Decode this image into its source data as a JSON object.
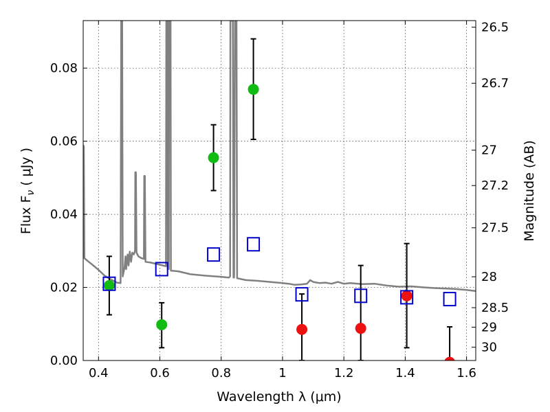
{
  "chart_data": {
    "type": "scatter",
    "title": "",
    "xlabel": "Wavelength  λ (μm)",
    "ylabel": "Flux  F",
    "ylabel_subscript": "ν",
    "ylabel_unit": "( μJy )",
    "y2label": "Magnitude (AB)",
    "xlim": [
      0.35,
      1.63
    ],
    "ylim": [
      0.0,
      0.093
    ],
    "x_ticks": [
      0.4,
      0.6,
      0.8,
      1.0,
      1.2,
      1.4,
      1.6
    ],
    "x_tick_labels": [
      "0.4",
      "0.6",
      "0.8",
      "1",
      "1.2",
      "1.4",
      "1.6"
    ],
    "y_ticks": [
      0.0,
      0.02,
      0.04,
      0.06,
      0.08
    ],
    "y_tick_labels": [
      "0.00",
      "0.02",
      "0.04",
      "0.06",
      "0.08"
    ],
    "y2_ticks": [
      26.5,
      26.7,
      27,
      27.2,
      27.5,
      28,
      28.5,
      29,
      30
    ],
    "y2_tick_labels": [
      "26.5",
      "26.7",
      "27",
      "27.2",
      "27.5",
      "28",
      "28.5",
      "29",
      "30"
    ],
    "grid": true,
    "colors": {
      "green": "#11bb11",
      "red": "#ee1111",
      "blue": "#0000cc",
      "model": "#808080",
      "errorbar": "#000000"
    },
    "series": [
      {
        "marker": "circle",
        "color": "green",
        "points": [
          {
            "x": 0.435,
            "y": 0.0205,
            "yerr_lo": 0.0125,
            "yerr_hi": 0.0285
          },
          {
            "x": 0.606,
            "y": 0.0098,
            "yerr_lo": 0.0035,
            "yerr_hi": 0.0158
          },
          {
            "x": 0.775,
            "y": 0.0555,
            "yerr_lo": 0.0465,
            "yerr_hi": 0.0645
          },
          {
            "x": 0.905,
            "y": 0.0742,
            "yerr_lo": 0.0605,
            "yerr_hi": 0.088
          }
        ]
      },
      {
        "marker": "circle",
        "color": "red",
        "points": [
          {
            "x": 1.063,
            "y": 0.0085,
            "yerr_lo": 0.0,
            "yerr_hi": 0.0182
          },
          {
            "x": 1.255,
            "y": 0.0088,
            "yerr_lo": 0.0,
            "yerr_hi": 0.026
          },
          {
            "x": 1.405,
            "y": 0.0177,
            "yerr_lo": 0.0035,
            "yerr_hi": 0.032
          },
          {
            "x": 1.545,
            "y": -0.0005,
            "yerr_lo": 0.0,
            "yerr_hi": 0.0092
          }
        ]
      },
      {
        "marker": "open-square",
        "color": "blue",
        "points": [
          {
            "x": 0.435,
            "y": 0.021
          },
          {
            "x": 0.606,
            "y": 0.025
          },
          {
            "x": 0.775,
            "y": 0.029
          },
          {
            "x": 0.905,
            "y": 0.0318
          },
          {
            "x": 1.063,
            "y": 0.0181
          },
          {
            "x": 1.255,
            "y": 0.0177
          },
          {
            "x": 1.405,
            "y": 0.0173
          },
          {
            "x": 1.545,
            "y": 0.0168
          }
        ]
      }
    ],
    "model_spectrum": {
      "color": "model",
      "points": [
        [
          0.35,
          0.059
        ],
        [
          0.352,
          0.0585
        ],
        [
          0.354,
          0.028
        ],
        [
          0.365,
          0.0272
        ],
        [
          0.38,
          0.0262
        ],
        [
          0.4,
          0.0248
        ],
        [
          0.42,
          0.0232
        ],
        [
          0.44,
          0.0222
        ],
        [
          0.46,
          0.0213
        ],
        [
          0.472,
          0.0212
        ],
        [
          0.474,
          0.093
        ],
        [
          0.477,
          0.093
        ],
        [
          0.479,
          0.023
        ],
        [
          0.485,
          0.0255
        ],
        [
          0.488,
          0.0285
        ],
        [
          0.49,
          0.025
        ],
        [
          0.495,
          0.029
        ],
        [
          0.498,
          0.026
        ],
        [
          0.502,
          0.0298
        ],
        [
          0.506,
          0.027
        ],
        [
          0.51,
          0.0295
        ],
        [
          0.515,
          0.029
        ],
        [
          0.519,
          0.03
        ],
        [
          0.52,
          0.0515
        ],
        [
          0.522,
          0.0515
        ],
        [
          0.524,
          0.0295
        ],
        [
          0.53,
          0.0285
        ],
        [
          0.54,
          0.028
        ],
        [
          0.548,
          0.0278
        ],
        [
          0.549,
          0.0505
        ],
        [
          0.551,
          0.0505
        ],
        [
          0.553,
          0.027
        ],
        [
          0.57,
          0.0268
        ],
        [
          0.59,
          0.0264
        ],
        [
          0.61,
          0.026
        ],
        [
          0.62,
          0.0258
        ],
        [
          0.621,
          0.093
        ],
        [
          0.625,
          0.093
        ],
        [
          0.626,
          0.025
        ],
        [
          0.629,
          0.025
        ],
        [
          0.63,
          0.093
        ],
        [
          0.635,
          0.093
        ],
        [
          0.636,
          0.0246
        ],
        [
          0.66,
          0.0244
        ],
        [
          0.7,
          0.0236
        ],
        [
          0.75,
          0.0232
        ],
        [
          0.8,
          0.0229
        ],
        [
          0.825,
          0.0227
        ],
        [
          0.829,
          0.023
        ],
        [
          0.83,
          0.093
        ],
        [
          0.838,
          0.093
        ],
        [
          0.84,
          0.0227
        ],
        [
          0.842,
          0.0227
        ],
        [
          0.845,
          0.093
        ],
        [
          0.85,
          0.093
        ],
        [
          0.852,
          0.0225
        ],
        [
          0.88,
          0.022
        ],
        [
          0.92,
          0.0218
        ],
        [
          0.96,
          0.0215
        ],
        [
          1.0,
          0.0212
        ],
        [
          1.02,
          0.021
        ],
        [
          1.04,
          0.0207
        ],
        [
          1.06,
          0.0208
        ],
        [
          1.08,
          0.021
        ],
        [
          1.09,
          0.022
        ],
        [
          1.1,
          0.0215
        ],
        [
          1.12,
          0.0212
        ],
        [
          1.14,
          0.0213
        ],
        [
          1.16,
          0.021
        ],
        [
          1.18,
          0.0215
        ],
        [
          1.2,
          0.021
        ],
        [
          1.22,
          0.0212
        ],
        [
          1.26,
          0.0209
        ],
        [
          1.3,
          0.021
        ],
        [
          1.34,
          0.0205
        ],
        [
          1.38,
          0.0202
        ],
        [
          1.42,
          0.0203
        ],
        [
          1.46,
          0.02
        ],
        [
          1.5,
          0.0198
        ],
        [
          1.56,
          0.0196
        ],
        [
          1.6,
          0.0193
        ],
        [
          1.63,
          0.019
        ]
      ]
    }
  }
}
